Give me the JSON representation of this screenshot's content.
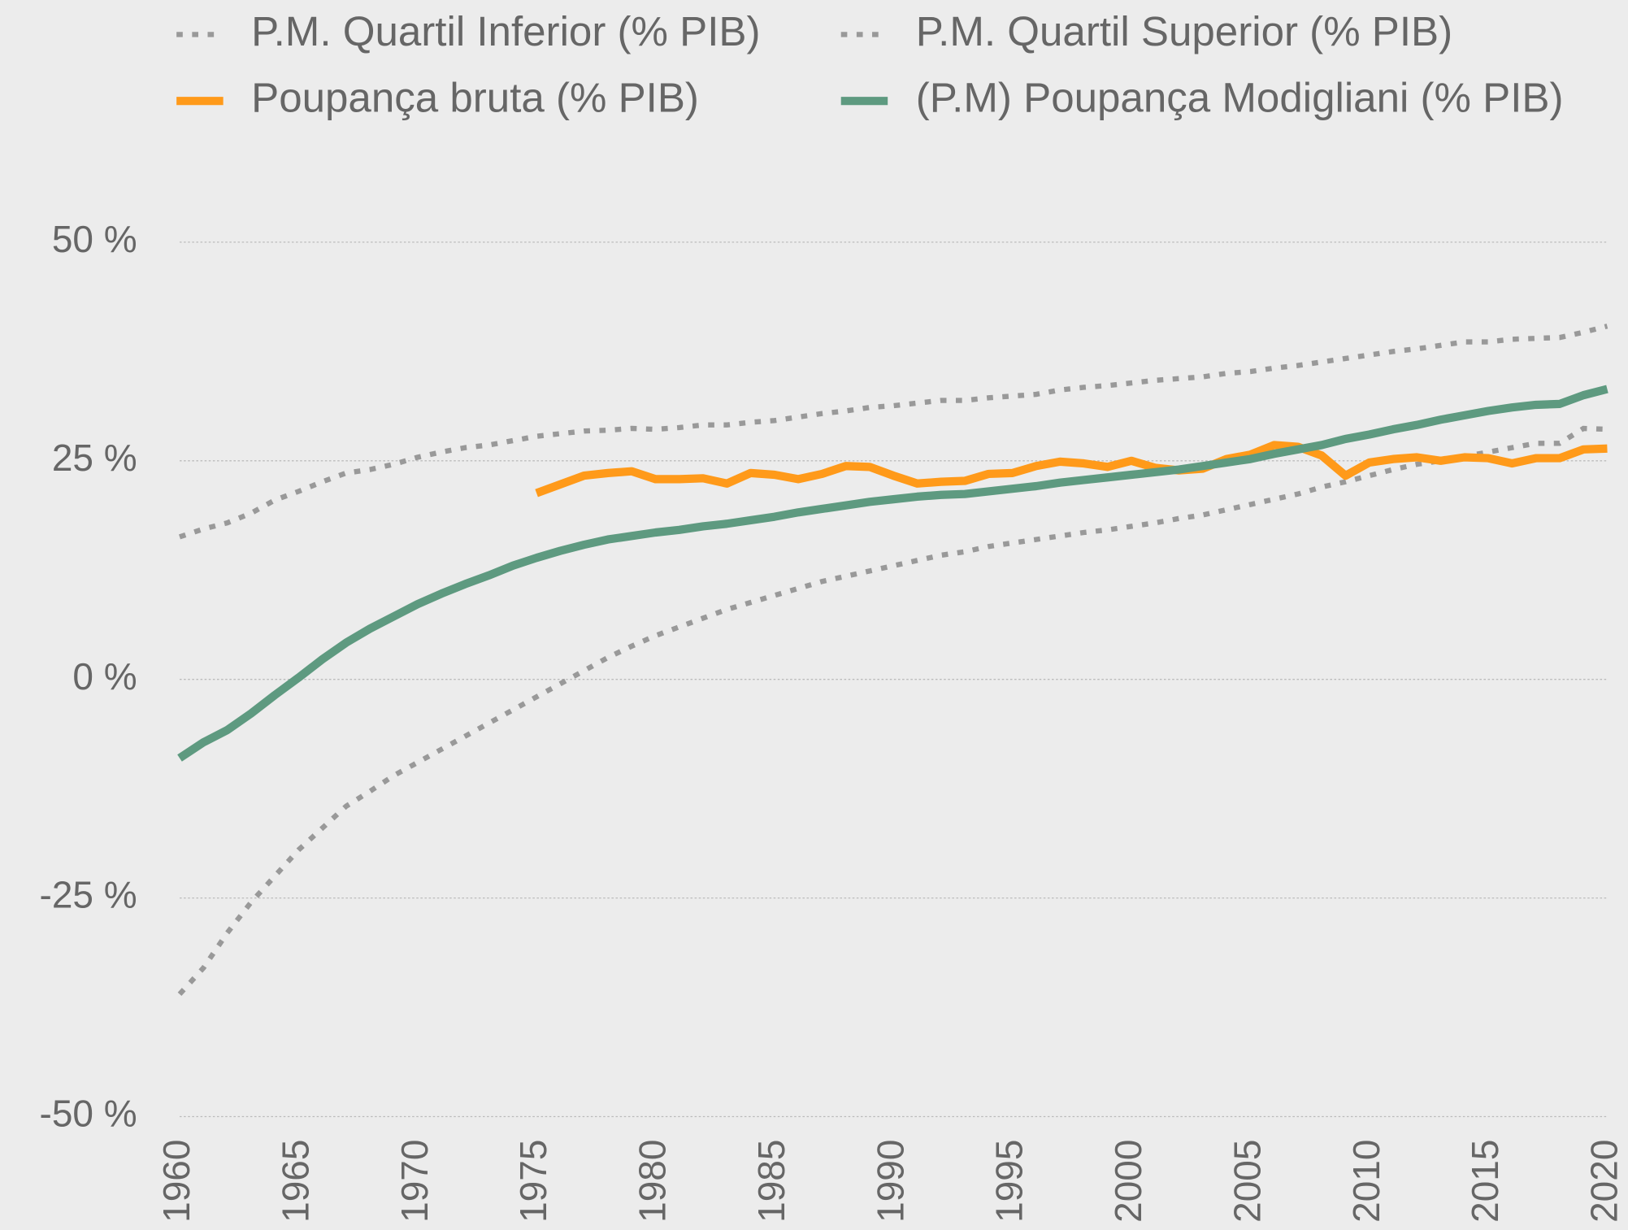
{
  "chart_data": {
    "type": "line",
    "x": [
      1960,
      1961,
      1962,
      1963,
      1964,
      1965,
      1966,
      1967,
      1968,
      1969,
      1970,
      1971,
      1972,
      1973,
      1974,
      1975,
      1976,
      1977,
      1978,
      1979,
      1980,
      1981,
      1982,
      1983,
      1984,
      1985,
      1986,
      1987,
      1988,
      1989,
      1990,
      1991,
      1992,
      1993,
      1994,
      1995,
      1996,
      1997,
      1998,
      1999,
      2000,
      2001,
      2002,
      2003,
      2004,
      2005,
      2006,
      2007,
      2008,
      2009,
      2010,
      2011,
      2012,
      2013,
      2014,
      2015,
      2016,
      2017,
      2018,
      2019,
      2020
    ],
    "series": [
      {
        "name": "P.M. Quartil Inferior (% PIB)",
        "color": "#999999",
        "style": "dotted",
        "values": [
          -36,
          -33,
          -29,
          -25.5,
          -22.5,
          -19.5,
          -17,
          -14.5,
          -12.8,
          -11,
          -9.5,
          -8,
          -6.5,
          -5,
          -3.5,
          -2,
          -0.5,
          1,
          2.5,
          3.8,
          5,
          6,
          7,
          8,
          8.8,
          9.6,
          10.4,
          11.2,
          11.8,
          12.4,
          13,
          13.6,
          14.2,
          14.6,
          15.2,
          15.6,
          16,
          16.4,
          16.8,
          17.1,
          17.5,
          17.9,
          18.4,
          18.8,
          19.4,
          20,
          20.6,
          21.2,
          22,
          22.6,
          23.3,
          24,
          24.6,
          25,
          25.5,
          26,
          26.5,
          27,
          27,
          28.7,
          28.6
        ]
      },
      {
        "name": "P.M. Quartil Superior (% PIB)",
        "color": "#999999",
        "style": "dotted",
        "values": [
          16.3,
          17.2,
          17.9,
          19,
          20.5,
          21.5,
          22.6,
          23.6,
          24,
          24.6,
          25.4,
          26,
          26.5,
          26.8,
          27.3,
          27.8,
          28.1,
          28.4,
          28.5,
          28.7,
          28.6,
          28.8,
          29.1,
          29.1,
          29.4,
          29.6,
          30,
          30.4,
          30.7,
          31.1,
          31.3,
          31.6,
          31.9,
          31.9,
          32.2,
          32.4,
          32.6,
          33.1,
          33.4,
          33.6,
          33.9,
          34.2,
          34.4,
          34.6,
          35,
          35.2,
          35.6,
          35.9,
          36.3,
          36.7,
          37.1,
          37.5,
          37.8,
          38.2,
          38.6,
          38.6,
          38.9,
          39,
          39.1,
          39.7,
          40.4
        ]
      },
      {
        "name": "Poupança bruta (% PIB)",
        "color": "#ff9a1a",
        "style": "solid",
        "values": [
          null,
          null,
          null,
          null,
          null,
          null,
          null,
          null,
          null,
          null,
          null,
          null,
          null,
          null,
          null,
          21.3,
          22.3,
          23.3,
          23.6,
          23.8,
          22.9,
          22.9,
          23,
          22.4,
          23.6,
          23.4,
          22.9,
          23.5,
          24.4,
          24.3,
          23.3,
          22.4,
          22.6,
          22.7,
          23.5,
          23.6,
          24.4,
          24.9,
          24.7,
          24.3,
          25,
          24.2,
          23.9,
          24.1,
          25.2,
          25.7,
          26.8,
          26.6,
          25.6,
          23.3,
          24.8,
          25.2,
          25.4,
          25,
          25.4,
          25.3,
          24.7,
          25.3,
          25.3,
          26.3,
          26.4
        ]
      },
      {
        "name": "(P.M) Poupança Modigliani (% PIB)",
        "color": "#5e9a80",
        "style": "solid",
        "values": [
          -9,
          -7.2,
          -5.8,
          -3.9,
          -1.8,
          0.2,
          2.3,
          4.2,
          5.8,
          7.2,
          8.6,
          9.8,
          10.9,
          11.9,
          13,
          13.9,
          14.7,
          15.4,
          16,
          16.4,
          16.8,
          17.1,
          17.5,
          17.8,
          18.2,
          18.6,
          19.1,
          19.5,
          19.9,
          20.3,
          20.6,
          20.9,
          21.1,
          21.2,
          21.5,
          21.8,
          22.1,
          22.5,
          22.8,
          23.1,
          23.4,
          23.7,
          24,
          24.4,
          24.8,
          25.2,
          25.8,
          26.3,
          26.8,
          27.5,
          28,
          28.6,
          29.1,
          29.7,
          30.2,
          30.7,
          31.1,
          31.4,
          31.5,
          32.5,
          33.2
        ]
      }
    ],
    "xlim": [
      1960,
      2020
    ],
    "xticks": [
      1960,
      1965,
      1970,
      1975,
      1980,
      1985,
      1990,
      1995,
      2000,
      2005,
      2010,
      2015,
      2020
    ],
    "ylim": [
      -50,
      50
    ],
    "yticks": [
      {
        "value": -50,
        "label": "-50 %"
      },
      {
        "value": -25,
        "label": "-25 %"
      },
      {
        "value": 0,
        "label": "0 %"
      },
      {
        "value": 25,
        "label": "25 %"
      },
      {
        "value": 50,
        "label": "50 %"
      }
    ],
    "grid": true,
    "legend": "top"
  }
}
